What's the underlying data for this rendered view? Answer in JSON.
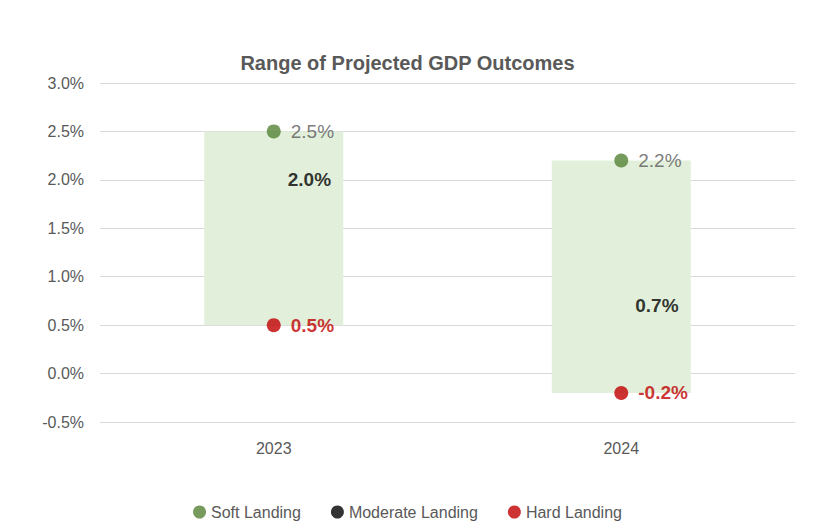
{
  "chart_data": {
    "type": "range",
    "title": "Range of Projected GDP Outcomes",
    "categories": [
      "2023",
      "2024"
    ],
    "series": [
      {
        "name": "Soft Landing",
        "color": "#548235",
        "marker": "circle",
        "values": [
          2.5,
          2.2
        ],
        "value_labels": [
          "2.5%",
          "2.2%"
        ]
      },
      {
        "name": "Moderate Landing",
        "color": "#000000",
        "marker": "none",
        "values": [
          2.0,
          0.7
        ],
        "value_labels": [
          "2.0%",
          "0.7%"
        ]
      },
      {
        "name": "Hard Landing",
        "color": "#c00000",
        "marker": "circle",
        "values": [
          0.5,
          -0.2
        ],
        "value_labels": [
          "0.5%",
          "-0.2%"
        ]
      }
    ],
    "ylim": [
      -0.5,
      3.0
    ],
    "yticks": [
      {
        "value": -0.5,
        "label": "-0.5%"
      },
      {
        "value": 0.0,
        "label": "0.0%"
      },
      {
        "value": 0.5,
        "label": "0.5%"
      },
      {
        "value": 1.0,
        "label": "1.0%"
      },
      {
        "value": 1.5,
        "label": "1.5%"
      },
      {
        "value": 2.0,
        "label": "2.0%"
      },
      {
        "value": 2.5,
        "label": "2.5%"
      },
      {
        "value": 3.0,
        "label": "3.0%"
      }
    ],
    "grid": true,
    "legend": "bottom",
    "data_labels": true
  }
}
